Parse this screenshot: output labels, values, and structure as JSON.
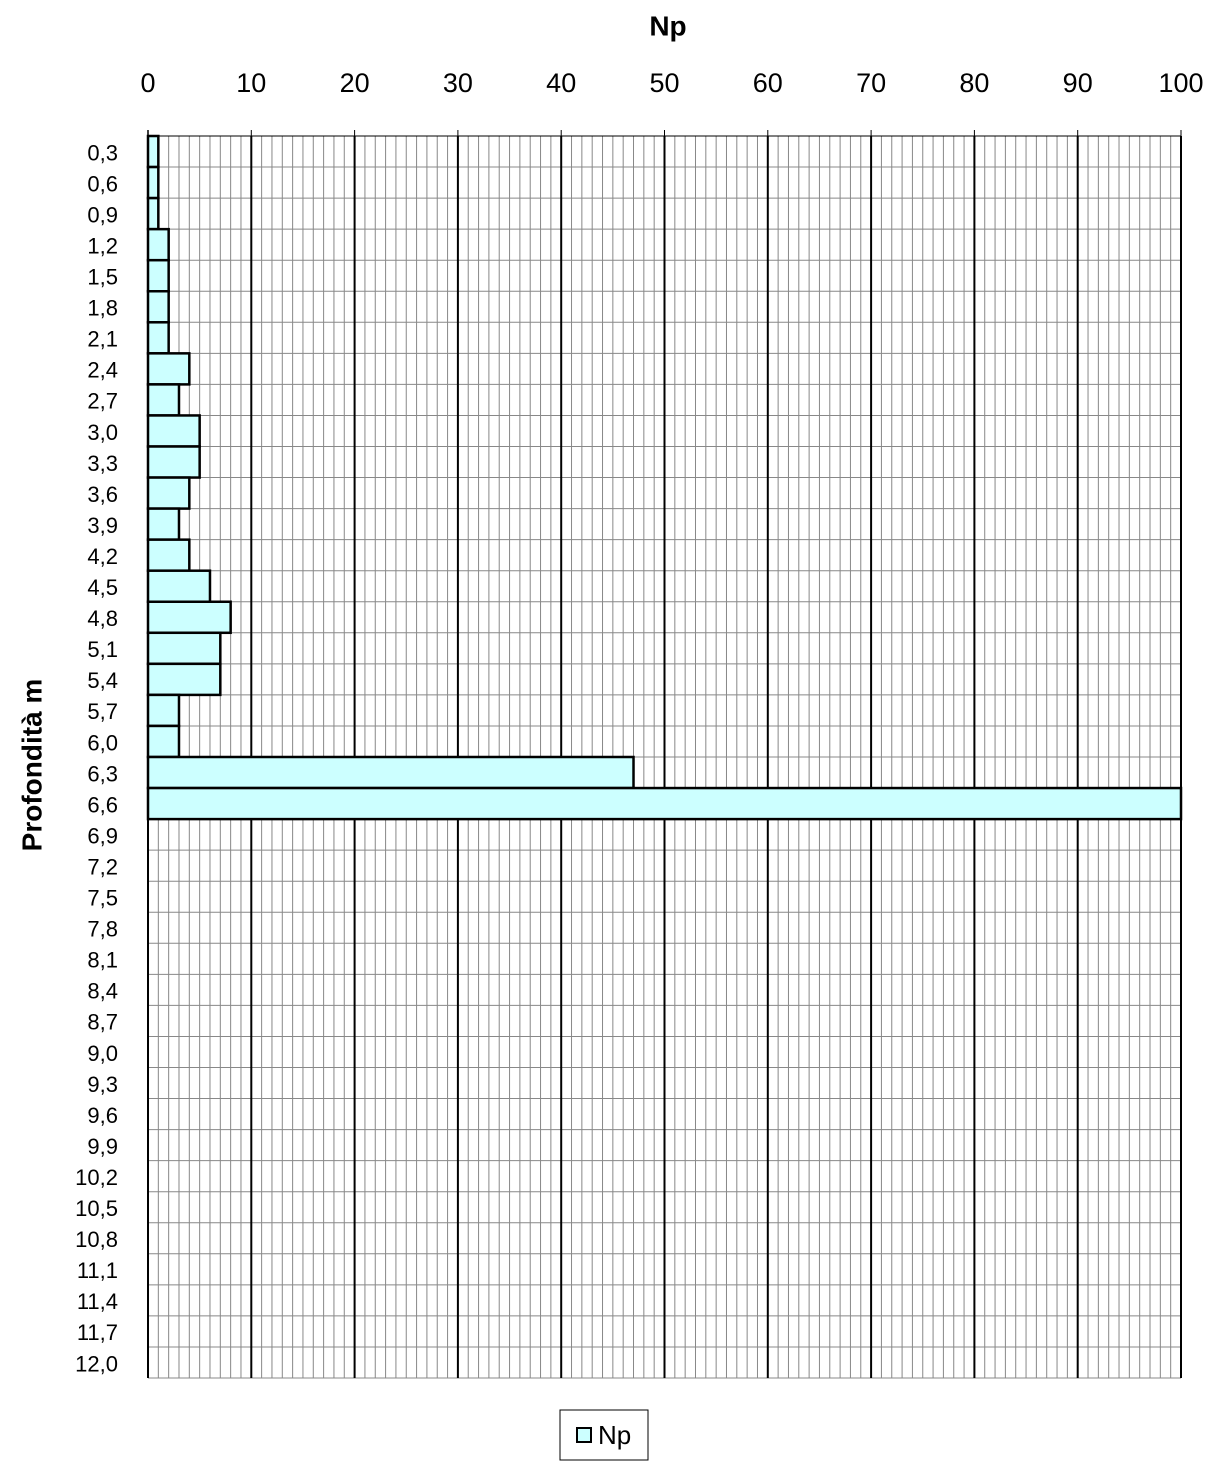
{
  "chart_data": {
    "type": "barh",
    "x_label": "Np",
    "y_label": "Profondità m",
    "categories": [
      "0,3",
      "0,6",
      "0,9",
      "1,2",
      "1,5",
      "1,8",
      "2,1",
      "2,4",
      "2,7",
      "3,0",
      "3,3",
      "3,6",
      "3,9",
      "4,2",
      "4,5",
      "4,8",
      "5,1",
      "5,4",
      "5,7",
      "6,0",
      "6,3",
      "6,6",
      "6,9",
      "7,2",
      "7,5",
      "7,8",
      "8,1",
      "8,4",
      "8,7",
      "9,0",
      "9,3",
      "9,6",
      "9,9",
      "10,2",
      "10,5",
      "10,8",
      "11,1",
      "11,4",
      "11,7",
      "12,0"
    ],
    "series": [
      {
        "name": "Np",
        "color": "#ccffff",
        "values": [
          1,
          1,
          1,
          2,
          2,
          2,
          2,
          4,
          3,
          5,
          5,
          4,
          3,
          4,
          6,
          8,
          7,
          7,
          3,
          3,
          47,
          100,
          null,
          null,
          null,
          null,
          null,
          null,
          null,
          null,
          null,
          null,
          null,
          null,
          null,
          null,
          null,
          null,
          null,
          null
        ]
      }
    ],
    "xlim": [
      0,
      100
    ],
    "xticks": [
      0,
      10,
      20,
      30,
      40,
      50,
      60,
      70,
      80,
      90,
      100
    ],
    "grid": true,
    "minor_grid": true,
    "legend": "bottom"
  }
}
